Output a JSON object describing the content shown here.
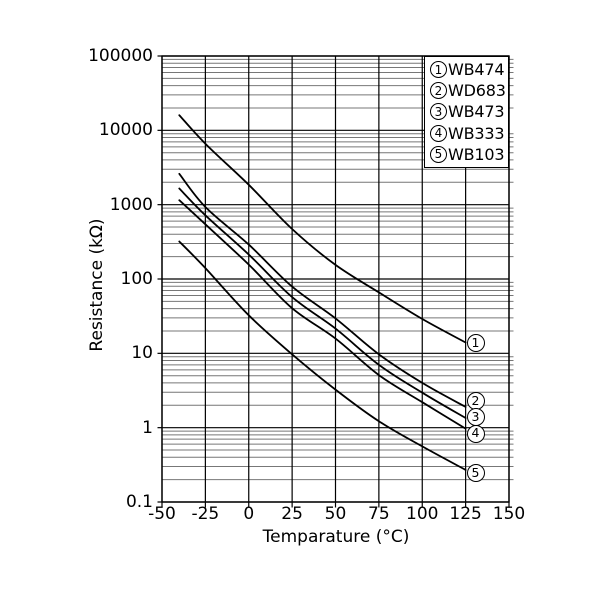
{
  "page": {
    "background": "#ffffff",
    "description": "Resistance - Temperature characteristics chart for NTC thermistors"
  },
  "colors": {
    "curve": "#000000",
    "grid_major": "#000000",
    "grid_minor": "#777777",
    "border": "#000000",
    "text": "#000000",
    "legend_background": "#ffffff"
  },
  "chart_data": {
    "type": "line",
    "title": "",
    "xlabel": "Temparature (°C)",
    "ylabel": "Resistance (kΩ)",
    "x_ticks": [
      -50,
      -25,
      0,
      25,
      50,
      75,
      100,
      125,
      150
    ],
    "y_ticks": [
      100000,
      10000,
      1000,
      100,
      10,
      1,
      0.1
    ],
    "xlim": [
      -50,
      150
    ],
    "ylim": [
      0.1,
      100000
    ],
    "y_scale": "log",
    "grid": "log minor gridlines horizontal, major black lines both axes",
    "legend_position": "top-right",
    "x": [
      -40,
      -25,
      0,
      25,
      50,
      75,
      100,
      125
    ],
    "series": [
      {
        "id": "1",
        "symbol": "①",
        "name": "WB474",
        "values": [
          16000,
          6600,
          1850,
          470,
          155,
          66,
          29,
          14
        ]
      },
      {
        "id": "2",
        "symbol": "②",
        "name": "WD683",
        "values": [
          2600,
          930,
          290,
          79,
          29.5,
          9.7,
          4.0,
          1.9
        ]
      },
      {
        "id": "3",
        "symbol": "③",
        "name": "WB473",
        "values": [
          1650,
          720,
          213,
          57,
          21.5,
          7.0,
          2.95,
          1.35
        ]
      },
      {
        "id": "4",
        "symbol": "④",
        "name": "WB333",
        "values": [
          1150,
          545,
          156,
          40.5,
          15.8,
          5.1,
          2.2,
          0.97
        ]
      },
      {
        "id": "5",
        "symbol": "⑤",
        "name": "WB103",
        "values": [
          320,
          140,
          32.5,
          9.7,
          3.25,
          1.22,
          0.56,
          0.27
        ]
      }
    ]
  }
}
